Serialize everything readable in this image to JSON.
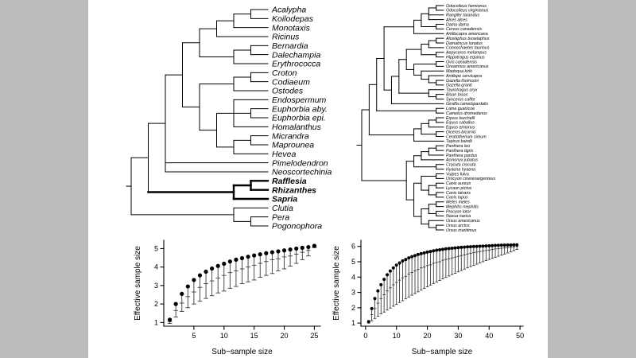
{
  "figure": {
    "background": "#bcbcbc",
    "panel_background": "#ffffff",
    "line_color": "#000000"
  },
  "trees": {
    "left": {
      "name": "euphorbiaceae-rafflesiaceae-phylogeny",
      "bold_tips": [
        "Rafflesia",
        "Rhizanthes",
        "Sapria"
      ],
      "topology": [
        [
          [
            [
              [
                [
                  [
                    [
                      "Acalypha",
                      "Koilodepas"
                    ],
                    "Monotaxis"
                  ],
                  "Ricinus"
                ],
                [
                  [
                    "Bernardia",
                    "Dalechampia"
                  ],
                  "Erythrococca"
                ]
              ],
              [
                [
                  [
                    "Croton",
                    "Codiaeum"
                  ],
                  "Ostodes"
                ],
                [
                  [
                    "Endospermum",
                    [
                      "Euphorbia aby.",
                      "Euphorbia epi."
                    ],
                    "Homalanthus"
                  ],
                  [
                    [
                      "Micrandra",
                      "Maprounea"
                    ],
                    "Hevea"
                  ]
                ]
              ]
            ],
            "Pimelodendron",
            "Neoscortechinia"
          ],
          [
            [
              "Rafflesia",
              "Rhizanthes"
            ],
            "Sapria"
          ]
        ],
        [
          "Clutia",
          [
            "Pera",
            "Pogonophora"
          ]
        ]
      ]
    },
    "right": {
      "name": "mammal-phylogeny",
      "bold_tips": [],
      "topology": [
        [
          [
            [
              [
                [
                  [
                    [
                      "Odocoileus hemionus",
                      "Odocoileus virginianus"
                    ],
                    "Rangifer tarandus",
                    "Alces alces"
                  ],
                  [
                    "Dama dama",
                    "Cervus canadensis"
                  ]
                ],
                "Antilocapra americana"
              ],
              [
                [
                  [
                    [
                      [
                        [
                          "Alcelaphus buselaphus",
                          "Damaliscus lunatus"
                        ],
                        "Connochaetes taurinus"
                      ],
                      [
                        "Aepyceros melampus",
                        "Hippotragus equinus"
                      ]
                    ],
                    [
                      [
                        "Ovis canadensis",
                        "Oreamnos americanus"
                      ],
                      [
                        "Madoqua kirki",
                        [
                          "Antilope cervicapra",
                          [
                            "Gazella thomsoni",
                            "Gazella granti"
                          ]
                        ]
                      ]
                    ]
                  ],
                  [
                    "Taurotragus oryx",
                    [
                      "Bison bison",
                      "Syncerus caffer"
                    ]
                  ]
                ],
                "Giraffa camelopardalis"
              ]
            ],
            [
              "Lama guanicoe",
              "Camelus dromedarius"
            ]
          ],
          [
            [
              [
                [
                  "Equus burchelli",
                  "Equus caballus"
                ],
                "Equus emionus"
              ],
              [
                "Diceros bicornis",
                "Ceratotherium simum"
              ]
            ],
            "Tapirus bairdii"
          ]
        ],
        [
          [
            [
              [
                [
                  "Panthera leo",
                  "Panthera tigris"
                ],
                "Panthera pardus"
              ],
              "Acinonyx jubatus"
            ],
            [
              "Crocuta crocuta",
              "Hyaena hyaena"
            ]
          ],
          [
            [
              [
                "Vulpes fulva",
                "Urocyon cinereoargenteus"
              ],
              [
                [
                  "Canis aureus",
                  "Lycaon pictus"
                ],
                [
                  "Canis latrans",
                  "Canis lupus"
                ]
              ]
            ],
            [
              [
                [
                  "Meles meles",
                  "Mephitis mephitis"
                ],
                [
                  "Procyon lotor",
                  "Nasua narica"
                ]
              ],
              [
                "Ursus americanus",
                [
                  "Ursus arctos",
                  "Ursus maritimus"
                ]
              ]
            ]
          ]
        ]
      ]
    }
  },
  "chart_data": [
    {
      "type": "scatter",
      "title": "",
      "xlabel": "Sub−sample size",
      "ylabel": "Effective sample size",
      "xticks": [
        5,
        10,
        15,
        20,
        25
      ],
      "yticks": [
        1,
        2,
        3,
        4,
        5
      ],
      "xlim": [
        0,
        26
      ],
      "ylim": [
        0.8,
        5.45
      ],
      "marker": "filled-circle",
      "x": [
        1,
        2,
        3,
        4,
        5,
        6,
        7,
        8,
        9,
        10,
        11,
        12,
        13,
        14,
        15,
        16,
        17,
        18,
        19,
        20,
        21,
        22,
        23,
        24,
        25
      ],
      "series": [
        {
          "name": "mean",
          "values": [
            1.15,
            2.0,
            2.55,
            2.95,
            3.3,
            3.55,
            3.75,
            3.92,
            4.06,
            4.18,
            4.3,
            4.4,
            4.48,
            4.56,
            4.63,
            4.69,
            4.75,
            4.8,
            4.85,
            4.9,
            4.95,
            5.0,
            5.04,
            5.08,
            5.15
          ]
        },
        {
          "name": "median",
          "values": [
            1.05,
            1.65,
            2.05,
            2.4,
            2.65,
            2.9,
            3.1,
            3.25,
            3.4,
            3.55,
            3.7,
            3.8,
            3.9,
            4.0,
            4.1,
            4.2,
            4.3,
            4.4,
            4.45,
            4.55,
            4.6,
            4.7,
            4.8,
            4.9,
            5.1
          ]
        },
        {
          "name": "lower",
          "values": [
            0.95,
            1.3,
            1.6,
            1.8,
            2.0,
            2.15,
            2.3,
            2.45,
            2.6,
            2.7,
            2.85,
            2.95,
            3.1,
            3.2,
            3.3,
            3.45,
            3.55,
            3.65,
            3.8,
            3.9,
            4.05,
            4.2,
            4.4,
            4.6,
            5.05
          ]
        }
      ]
    },
    {
      "type": "scatter",
      "title": "",
      "xlabel": "Sub−sample size",
      "ylabel": "Effective sample size",
      "xticks": [
        0,
        10,
        20,
        30,
        40,
        50
      ],
      "yticks": [
        1,
        2,
        3,
        4,
        5,
        6
      ],
      "xlim": [
        -1.5,
        51
      ],
      "ylim": [
        0.8,
        6.4
      ],
      "marker": "filled-circle",
      "x": [
        1,
        2,
        3,
        4,
        5,
        6,
        7,
        8,
        9,
        10,
        11,
        12,
        13,
        14,
        15,
        16,
        17,
        18,
        19,
        20,
        21,
        22,
        23,
        24,
        25,
        26,
        27,
        28,
        29,
        30,
        31,
        32,
        33,
        34,
        35,
        36,
        37,
        38,
        39,
        40,
        41,
        42,
        43,
        44,
        45,
        46,
        47,
        48,
        49
      ],
      "series": [
        {
          "name": "mean",
          "values": [
            1.1,
            1.95,
            2.6,
            3.1,
            3.5,
            3.85,
            4.15,
            4.4,
            4.6,
            4.78,
            4.92,
            5.05,
            5.15,
            5.25,
            5.33,
            5.4,
            5.47,
            5.53,
            5.58,
            5.63,
            5.67,
            5.71,
            5.75,
            5.78,
            5.81,
            5.84,
            5.86,
            5.88,
            5.9,
            5.92,
            5.94,
            5.95,
            5.97,
            5.98,
            5.99,
            6.0,
            6.01,
            6.02,
            6.03,
            6.04,
            6.05,
            6.06,
            6.07,
            6.08,
            6.08,
            6.09,
            6.09,
            6.1,
            6.1
          ]
        },
        {
          "name": "median",
          "values": [
            1.05,
            1.55,
            1.95,
            2.3,
            2.6,
            2.85,
            3.1,
            3.3,
            3.5,
            3.65,
            3.8,
            3.95,
            4.05,
            4.2,
            4.3,
            4.4,
            4.5,
            4.6,
            4.65,
            4.75,
            4.8,
            4.9,
            4.95,
            5.0,
            5.1,
            5.15,
            5.2,
            5.25,
            5.3,
            5.35,
            5.4,
            5.45,
            5.5,
            5.55,
            5.6,
            5.63,
            5.66,
            5.7,
            5.73,
            5.76,
            5.8,
            5.83,
            5.86,
            5.88,
            5.9,
            5.92,
            5.94,
            5.97,
            6.0
          ]
        },
        {
          "name": "lower",
          "values": [
            1.0,
            1.15,
            1.3,
            1.45,
            1.6,
            1.72,
            1.85,
            1.98,
            2.1,
            2.22,
            2.34,
            2.46,
            2.58,
            2.7,
            2.82,
            2.93,
            3.04,
            3.15,
            3.26,
            3.37,
            3.48,
            3.58,
            3.68,
            3.78,
            3.88,
            3.98,
            4.07,
            4.16,
            4.25,
            4.34,
            4.43,
            4.52,
            4.6,
            4.68,
            4.76,
            4.84,
            4.92,
            5.0,
            5.08,
            5.15,
            5.22,
            5.29,
            5.36,
            5.43,
            5.5,
            5.57,
            5.64,
            5.72,
            5.8
          ]
        }
      ]
    }
  ]
}
